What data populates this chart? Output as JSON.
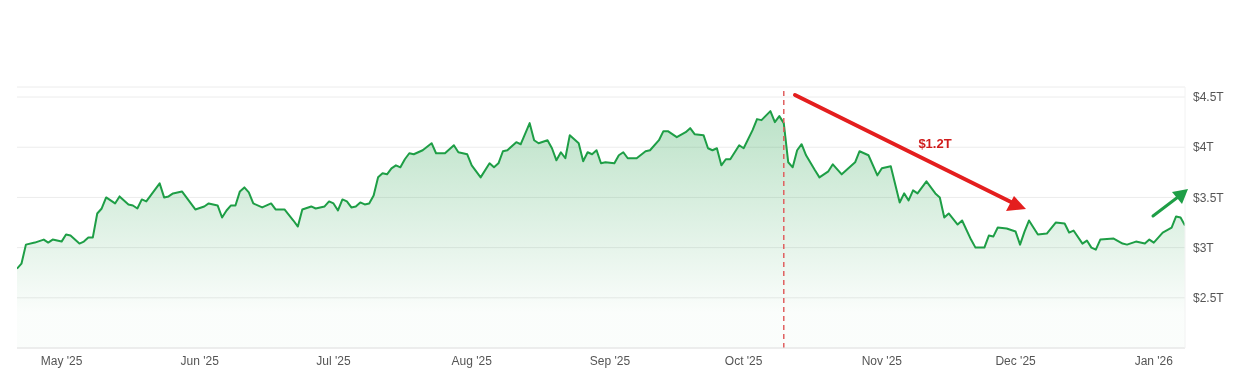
{
  "chart_data": {
    "type": "area",
    "x": [
      "2025-04-21",
      "2025-04-22",
      "2025-04-23",
      "2025-04-25",
      "2025-04-27",
      "2025-04-28",
      "2025-04-29",
      "2025-05-01",
      "2025-05-02",
      "2025-05-03",
      "2025-05-05",
      "2025-05-06",
      "2025-05-07",
      "2025-05-08",
      "2025-05-09",
      "2025-05-10",
      "2025-05-11",
      "2025-05-13",
      "2025-05-14",
      "2025-05-16",
      "2025-05-17",
      "2025-05-18",
      "2025-05-19",
      "2025-05-20",
      "2025-05-21",
      "2025-05-23",
      "2025-05-24",
      "2025-05-25",
      "2025-05-26",
      "2025-05-28",
      "2025-05-29",
      "2025-05-31",
      "2025-06-02",
      "2025-06-03",
      "2025-06-05",
      "2025-06-06",
      "2025-06-07",
      "2025-06-08",
      "2025-06-09",
      "2025-06-10",
      "2025-06-11",
      "2025-06-12",
      "2025-06-13",
      "2025-06-15",
      "2025-06-17",
      "2025-06-18",
      "2025-06-20",
      "2025-06-22",
      "2025-06-23",
      "2025-06-24",
      "2025-06-26",
      "2025-06-27",
      "2025-06-29",
      "2025-06-30",
      "2025-07-01",
      "2025-07-02",
      "2025-07-03",
      "2025-07-04",
      "2025-07-05",
      "2025-07-06",
      "2025-07-07",
      "2025-07-08",
      "2025-07-09",
      "2025-07-10",
      "2025-07-11",
      "2025-07-12",
      "2025-07-13",
      "2025-07-14",
      "2025-07-15",
      "2025-07-16",
      "2025-07-17",
      "2025-07-18",
      "2025-07-19",
      "2025-07-21",
      "2025-07-23",
      "2025-07-24",
      "2025-07-26",
      "2025-07-28",
      "2025-07-29",
      "2025-07-31",
      "2025-08-01",
      "2025-08-03",
      "2025-08-05",
      "2025-08-06",
      "2025-08-07",
      "2025-08-08",
      "2025-08-09",
      "2025-08-11",
      "2025-08-12",
      "2025-08-14",
      "2025-08-15",
      "2025-08-16",
      "2025-08-18",
      "2025-08-19",
      "2025-08-20",
      "2025-08-21",
      "2025-08-22",
      "2025-08-23",
      "2025-08-25",
      "2025-08-26",
      "2025-08-27",
      "2025-08-28",
      "2025-08-29",
      "2025-08-30",
      "2025-08-31",
      "2025-09-02",
      "2025-09-03",
      "2025-09-04",
      "2025-09-05",
      "2025-09-07",
      "2025-09-09",
      "2025-09-10",
      "2025-09-12",
      "2025-09-13",
      "2025-09-14",
      "2025-09-16",
      "2025-09-18",
      "2025-09-19",
      "2025-09-20",
      "2025-09-22",
      "2025-09-23",
      "2025-09-24",
      "2025-09-25",
      "2025-09-26",
      "2025-09-27",
      "2025-09-28",
      "2025-09-30",
      "2025-10-01",
      "2025-10-03",
      "2025-10-04",
      "2025-10-05",
      "2025-10-07",
      "2025-10-08",
      "2025-10-09",
      "2025-10-10",
      "2025-10-11",
      "2025-10-12",
      "2025-10-13",
      "2025-10-14",
      "2025-10-15",
      "2025-10-17",
      "2025-10-18",
      "2025-10-20",
      "2025-10-21",
      "2025-10-23",
      "2025-10-25",
      "2025-10-26",
      "2025-10-27",
      "2025-10-29",
      "2025-10-31",
      "2025-11-01",
      "2025-11-03",
      "2025-11-05",
      "2025-11-06",
      "2025-11-07",
      "2025-11-08",
      "2025-11-09",
      "2025-11-11",
      "2025-11-13",
      "2025-11-14",
      "2025-11-15",
      "2025-11-16",
      "2025-11-18",
      "2025-11-19",
      "2025-11-21",
      "2025-11-22",
      "2025-11-24",
      "2025-11-25",
      "2025-11-26",
      "2025-11-27",
      "2025-11-29",
      "2025-12-01",
      "2025-12-02",
      "2025-12-03",
      "2025-12-04",
      "2025-12-05",
      "2025-12-06",
      "2025-12-08",
      "2025-12-10",
      "2025-12-12",
      "2025-12-13",
      "2025-12-14",
      "2025-12-16",
      "2025-12-17",
      "2025-12-18",
      "2025-12-19",
      "2025-12-20",
      "2025-12-23",
      "2025-12-25",
      "2025-12-26",
      "2025-12-28",
      "2025-12-30",
      "2025-12-31",
      "2026-01-01",
      "2026-01-03",
      "2026-01-05",
      "2026-01-06",
      "2026-01-07",
      "2026-01-08"
    ],
    "values": [
      2.79,
      2.84,
      3.03,
      3.05,
      3.08,
      3.05,
      3.08,
      3.06,
      3.13,
      3.12,
      3.04,
      3.06,
      3.1,
      3.1,
      3.34,
      3.39,
      3.5,
      3.44,
      3.51,
      3.43,
      3.42,
      3.39,
      3.48,
      3.46,
      3.52,
      3.64,
      3.5,
      3.51,
      3.54,
      3.56,
      3.5,
      3.38,
      3.41,
      3.44,
      3.42,
      3.3,
      3.37,
      3.42,
      3.42,
      3.56,
      3.6,
      3.55,
      3.44,
      3.4,
      3.44,
      3.38,
      3.38,
      3.27,
      3.21,
      3.38,
      3.41,
      3.39,
      3.41,
      3.46,
      3.44,
      3.37,
      3.48,
      3.46,
      3.4,
      3.41,
      3.45,
      3.43,
      3.44,
      3.52,
      3.7,
      3.74,
      3.73,
      3.79,
      3.82,
      3.8,
      3.88,
      3.94,
      3.93,
      3.97,
      4.04,
      3.94,
      3.94,
      4.02,
      3.95,
      3.93,
      3.82,
      3.7,
      3.84,
      3.8,
      3.84,
      3.96,
      3.97,
      4.05,
      4.03,
      4.24,
      4.07,
      4.04,
      4.07,
      3.99,
      3.87,
      3.95,
      3.89,
      4.12,
      4.04,
      3.86,
      3.95,
      3.93,
      3.97,
      3.84,
      3.85,
      3.84,
      3.92,
      3.95,
      3.89,
      3.89,
      3.96,
      3.97,
      4.07,
      4.16,
      4.16,
      4.1,
      4.15,
      4.19,
      4.13,
      4.12,
      3.99,
      3.97,
      3.99,
      3.82,
      3.88,
      3.88,
      4.02,
      3.99,
      4.17,
      4.28,
      4.27,
      4.36,
      4.25,
      4.31,
      4.24,
      3.85,
      3.8,
      3.97,
      4.03,
      3.92,
      3.77,
      3.7,
      3.76,
      3.83,
      3.73,
      3.81,
      3.85,
      3.96,
      3.92,
      3.72,
      3.79,
      3.81,
      3.45,
      3.54,
      3.47,
      3.57,
      3.54,
      3.66,
      3.54,
      3.5,
      3.3,
      3.34,
      3.23,
      3.27,
      3.08,
      3.0,
      3.0,
      3.12,
      3.11,
      3.2,
      3.19,
      3.16,
      3.03,
      3.16,
      3.27,
      3.2,
      3.13,
      3.14,
      3.25,
      3.24,
      3.15,
      3.17,
      3.04,
      3.07,
      3.0,
      2.98,
      3.08,
      3.09,
      3.04,
      3.03,
      3.06,
      3.04,
      3.08,
      3.05,
      3.15,
      3.2,
      3.31,
      3.3,
      3.22
    ],
    "color": "#1e9e46",
    "xlim": [
      "2025-04-21",
      "2026-01-08"
    ],
    "xticks": [
      {
        "value": "2025-05-01",
        "label": "May '25"
      },
      {
        "value": "2025-06-01",
        "label": "Jun '25"
      },
      {
        "value": "2025-07-01",
        "label": "Jul '25"
      },
      {
        "value": "2025-08-01",
        "label": "Aug '25"
      },
      {
        "value": "2025-09-01",
        "label": "Sep '25"
      },
      {
        "value": "2025-10-01",
        "label": "Oct '25"
      },
      {
        "value": "2025-11-01",
        "label": "Nov '25"
      },
      {
        "value": "2025-12-01",
        "label": "Dec '25"
      },
      {
        "value": "2026-01-01",
        "label": "Jan '26"
      }
    ],
    "ylim": [
      2.0,
      4.6
    ],
    "yticks": [
      {
        "value": 2.5,
        "label": "$2.5T"
      },
      {
        "value": 3,
        "label": "$3T"
      },
      {
        "value": 3.5,
        "label": "$3.5T"
      },
      {
        "value": 4,
        "label": "$4T"
      },
      {
        "value": 4.5,
        "label": "$4.5T"
      }
    ],
    "grid": "y",
    "legend": false,
    "marker": "none",
    "line_style": "solid",
    "ref_lines": [
      {
        "axis": "x",
        "value": "2025-10-10",
        "color": "#e06060",
        "line_style": "dashed"
      }
    ],
    "annotations": [
      "$1.2T"
    ]
  }
}
